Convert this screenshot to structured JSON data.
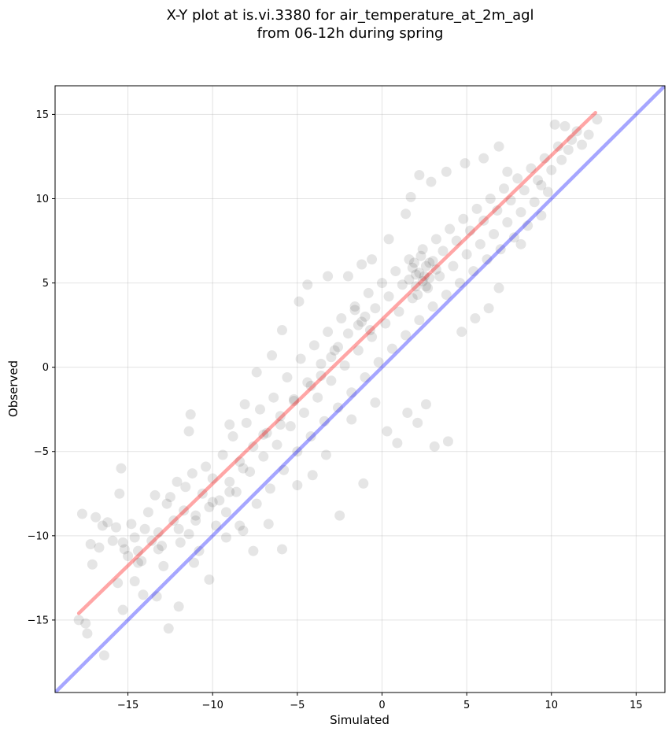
{
  "chart_data": {
    "type": "scatter",
    "title_line1": "X-Y plot at is.vi.3380 for air_temperature_at_2m_agl",
    "title_line2": "from 06-12h during spring",
    "xlabel": "Simulated",
    "ylabel": "Observed",
    "xlim": [
      -19.3,
      16.7
    ],
    "ylim": [
      -19.3,
      16.7
    ],
    "xticks": [
      -15,
      -10,
      -5,
      0,
      5,
      10,
      15
    ],
    "yticks": [
      -15,
      -10,
      -5,
      0,
      5,
      10,
      15
    ],
    "xtick_labels": [
      "−15",
      "−10",
      "−5",
      "0",
      "5",
      "10",
      "15"
    ],
    "ytick_labels": [
      "−15",
      "−10",
      "−5",
      "0",
      "5",
      "10",
      "15"
    ],
    "grid": true,
    "series": [
      {
        "marker_color": "#000000",
        "marker_alpha": 0.1,
        "points": [
          [
            -17.9,
            -15.0
          ],
          [
            -17.5,
            -15.2
          ],
          [
            -17.4,
            -15.8
          ],
          [
            -16.4,
            -17.1
          ],
          [
            -17.7,
            -8.7
          ],
          [
            -17.2,
            -10.5
          ],
          [
            -17.1,
            -11.7
          ],
          [
            -16.9,
            -8.9
          ],
          [
            -16.7,
            -10.7
          ],
          [
            -16.5,
            -9.4
          ],
          [
            -16.2,
            -9.2
          ],
          [
            -15.9,
            -10.3
          ],
          [
            -15.7,
            -9.5
          ],
          [
            -15.5,
            -7.5
          ],
          [
            -15.4,
            -6.0
          ],
          [
            -15.3,
            -10.4
          ],
          [
            -15.2,
            -10.8
          ],
          [
            -15.0,
            -11.2
          ],
          [
            -14.8,
            -9.3
          ],
          [
            -14.6,
            -10.1
          ],
          [
            -14.4,
            -10.9
          ],
          [
            -14.2,
            -11.5
          ],
          [
            -14.0,
            -9.6
          ],
          [
            -13.8,
            -8.6
          ],
          [
            -13.6,
            -10.3
          ],
          [
            -13.4,
            -7.6
          ],
          [
            -13.2,
            -9.8
          ],
          [
            -13.0,
            -10.6
          ],
          [
            -12.9,
            -11.8
          ],
          [
            -12.7,
            -8.1
          ],
          [
            -12.5,
            -7.7
          ],
          [
            -12.3,
            -9.1
          ],
          [
            -12.1,
            -6.8
          ],
          [
            -11.9,
            -10.4
          ],
          [
            -11.7,
            -8.5
          ],
          [
            -11.6,
            -7.1
          ],
          [
            -11.4,
            -9.9
          ],
          [
            -11.2,
            -6.3
          ],
          [
            -11.0,
            -8.8
          ],
          [
            -10.8,
            -10.9
          ],
          [
            -10.6,
            -7.5
          ],
          [
            -10.4,
            -5.9
          ],
          [
            -10.2,
            -8.3
          ],
          [
            -10.0,
            -6.6
          ],
          [
            -9.8,
            -9.4
          ],
          [
            -9.6,
            -7.9
          ],
          [
            -9.4,
            -5.2
          ],
          [
            -9.2,
            -8.6
          ],
          [
            -9.0,
            -6.8
          ],
          [
            -8.8,
            -4.1
          ],
          [
            -8.6,
            -7.4
          ],
          [
            -8.4,
            -5.6
          ],
          [
            -8.2,
            -9.7
          ],
          [
            -8.0,
            -3.3
          ],
          [
            -7.8,
            -6.2
          ],
          [
            -7.6,
            -4.7
          ],
          [
            -7.4,
            -8.1
          ],
          [
            -7.2,
            -2.5
          ],
          [
            -7.0,
            -5.3
          ],
          [
            -6.8,
            -3.9
          ],
          [
            -6.6,
            -7.2
          ],
          [
            -6.4,
            -1.8
          ],
          [
            -6.2,
            -4.6
          ],
          [
            -6.0,
            -2.9
          ],
          [
            -5.8,
            -6.1
          ],
          [
            -5.6,
            -0.6
          ],
          [
            -5.4,
            -3.5
          ],
          [
            -5.2,
            -1.9
          ],
          [
            -5.0,
            -5.0
          ],
          [
            -4.8,
            0.5
          ],
          [
            -4.6,
            -2.7
          ],
          [
            -4.4,
            -0.9
          ],
          [
            -4.2,
            -4.1
          ],
          [
            -4.0,
            1.3
          ],
          [
            -3.8,
            -1.8
          ],
          [
            -3.6,
            0.2
          ],
          [
            -3.4,
            -3.2
          ],
          [
            -3.2,
            2.1
          ],
          [
            -3.0,
            -0.8
          ],
          [
            -2.8,
            1.0
          ],
          [
            -2.6,
            -2.4
          ],
          [
            -2.4,
            2.9
          ],
          [
            -2.2,
            0.1
          ],
          [
            -2.0,
            2.0
          ],
          [
            -1.8,
            -1.5
          ],
          [
            -1.6,
            3.6
          ],
          [
            -1.4,
            1.0
          ],
          [
            -1.2,
            2.7
          ],
          [
            -1.0,
            -0.6
          ],
          [
            -0.8,
            4.4
          ],
          [
            -0.6,
            1.8
          ],
          [
            -0.4,
            3.5
          ],
          [
            -0.2,
            0.3
          ],
          [
            0.0,
            5.0
          ],
          [
            0.2,
            2.6
          ],
          [
            0.4,
            4.2
          ],
          [
            0.6,
            1.1
          ],
          [
            0.8,
            5.7
          ],
          [
            1.0,
            3.3
          ],
          [
            1.2,
            4.9
          ],
          [
            1.4,
            1.9
          ],
          [
            1.6,
            6.4
          ],
          [
            1.8,
            4.1
          ],
          [
            2.0,
            5.5
          ],
          [
            2.2,
            2.8
          ],
          [
            2.4,
            7.0
          ],
          [
            2.6,
            4.8
          ],
          [
            2.8,
            6.2
          ],
          [
            3.0,
            3.6
          ],
          [
            3.2,
            7.6
          ],
          [
            3.4,
            5.4
          ],
          [
            3.6,
            6.9
          ],
          [
            3.8,
            4.3
          ],
          [
            4.0,
            8.2
          ],
          [
            4.2,
            6.0
          ],
          [
            4.4,
            7.5
          ],
          [
            4.6,
            5.0
          ],
          [
            4.8,
            8.8
          ],
          [
            5.0,
            6.7
          ],
          [
            5.2,
            8.1
          ],
          [
            5.4,
            5.7
          ],
          [
            5.6,
            9.4
          ],
          [
            5.8,
            7.3
          ],
          [
            6.0,
            8.7
          ],
          [
            6.2,
            6.4
          ],
          [
            6.4,
            10.0
          ],
          [
            6.6,
            7.9
          ],
          [
            6.8,
            9.3
          ],
          [
            7.0,
            7.0
          ],
          [
            7.2,
            10.6
          ],
          [
            7.4,
            8.6
          ],
          [
            7.6,
            9.9
          ],
          [
            7.8,
            7.7
          ],
          [
            8.0,
            11.2
          ],
          [
            8.2,
            9.2
          ],
          [
            8.4,
            10.5
          ],
          [
            8.6,
            8.4
          ],
          [
            8.8,
            11.8
          ],
          [
            9.0,
            9.8
          ],
          [
            9.2,
            11.1
          ],
          [
            9.4,
            9.0
          ],
          [
            9.6,
            12.4
          ],
          [
            9.8,
            10.4
          ],
          [
            10.0,
            11.7
          ],
          [
            10.2,
            14.4
          ],
          [
            10.4,
            13.1
          ],
          [
            10.6,
            12.3
          ],
          [
            10.8,
            14.3
          ],
          [
            11.0,
            12.9
          ],
          [
            11.2,
            13.5
          ],
          [
            11.5,
            14.0
          ],
          [
            11.8,
            13.2
          ],
          [
            12.2,
            13.8
          ],
          [
            12.7,
            14.7
          ],
          [
            6.9,
            4.7
          ],
          [
            6.3,
            3.5
          ],
          [
            5.5,
            2.9
          ],
          [
            4.7,
            2.1
          ],
          [
            3.9,
            -4.4
          ],
          [
            3.1,
            -4.7
          ],
          [
            2.6,
            -2.2
          ],
          [
            2.1,
            -3.3
          ],
          [
            1.5,
            -2.7
          ],
          [
            0.9,
            -4.5
          ],
          [
            0.3,
            -3.8
          ],
          [
            -0.4,
            -2.1
          ],
          [
            -1.1,
            -6.9
          ],
          [
            -1.8,
            -3.1
          ],
          [
            -2.5,
            -8.8
          ],
          [
            -3.3,
            -5.2
          ],
          [
            -4.1,
            -6.4
          ],
          [
            -5.0,
            -7.0
          ],
          [
            -5.9,
            -10.8
          ],
          [
            -6.7,
            -9.3
          ],
          [
            -7.6,
            -10.9
          ],
          [
            -8.4,
            -9.4
          ],
          [
            -9.2,
            -10.1
          ],
          [
            -10.2,
            -12.6
          ],
          [
            -11.1,
            -11.6
          ],
          [
            -12.0,
            -14.2
          ],
          [
            -12.6,
            -15.5
          ],
          [
            -13.3,
            -13.6
          ],
          [
            -14.1,
            -13.5
          ],
          [
            -14.6,
            -12.7
          ],
          [
            -15.3,
            -14.4
          ],
          [
            -11.4,
            -3.8
          ],
          [
            -11.3,
            -2.8
          ],
          [
            -9.0,
            -3.4
          ],
          [
            -8.1,
            -2.2
          ],
          [
            -7.4,
            -0.3
          ],
          [
            -6.5,
            0.7
          ],
          [
            -5.9,
            2.2
          ],
          [
            -4.9,
            3.9
          ],
          [
            -4.4,
            4.9
          ],
          [
            -3.2,
            5.4
          ],
          [
            -2.0,
            5.4
          ],
          [
            -1.2,
            6.1
          ],
          [
            -0.6,
            6.4
          ],
          [
            0.4,
            7.6
          ],
          [
            1.4,
            9.1
          ],
          [
            1.7,
            10.1
          ],
          [
            2.2,
            11.4
          ],
          [
            2.9,
            11.0
          ],
          [
            3.8,
            11.6
          ],
          [
            4.9,
            12.1
          ],
          [
            6.0,
            12.4
          ],
          [
            6.9,
            13.1
          ],
          [
            7.4,
            11.6
          ],
          [
            8.2,
            7.3
          ],
          [
            9.4,
            10.8
          ],
          [
            2.2,
            5.6
          ],
          [
            2.4,
            5.1
          ],
          [
            2.6,
            6.0
          ],
          [
            2.0,
            4.8
          ],
          [
            1.8,
            5.9
          ],
          [
            2.8,
            5.3
          ],
          [
            3.0,
            6.3
          ],
          [
            1.6,
            5.2
          ],
          [
            2.3,
            6.6
          ],
          [
            2.7,
            4.7
          ],
          [
            1.9,
            6.2
          ],
          [
            3.2,
            5.8
          ],
          [
            2.5,
            5.4
          ],
          [
            2.1,
            4.3
          ],
          [
            -1.0,
            3.0
          ],
          [
            -1.4,
            2.5
          ],
          [
            -0.7,
            2.2
          ],
          [
            -1.6,
            3.4
          ],
          [
            -2.6,
            1.2
          ],
          [
            -3.0,
            0.6
          ],
          [
            -3.6,
            -0.5
          ],
          [
            -4.2,
            -1.1
          ],
          [
            -5.2,
            -2.0
          ],
          [
            -6.0,
            -3.4
          ],
          [
            -7.0,
            -4.0
          ],
          [
            -8.2,
            -6.0
          ],
          [
            -9.0,
            -7.4
          ],
          [
            -10.0,
            -8.0
          ],
          [
            -11.0,
            -9.1
          ],
          [
            -12.0,
            -9.6
          ],
          [
            -13.2,
            -10.8
          ],
          [
            -14.4,
            -11.6
          ],
          [
            -15.6,
            -12.8
          ]
        ]
      }
    ],
    "lines": [
      {
        "role": "fit",
        "color": "#ff0000",
        "alpha": 0.35,
        "x": [
          -17.9,
          12.6
        ],
        "y": [
          -14.6,
          15.1
        ]
      },
      {
        "role": "identity",
        "color": "#0000ff",
        "alpha": 0.35,
        "x": [
          -19.3,
          16.7
        ],
        "y": [
          -19.3,
          16.7
        ]
      }
    ]
  }
}
